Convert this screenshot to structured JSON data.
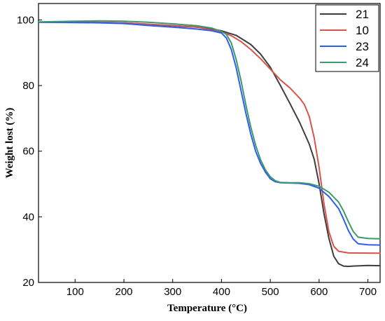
{
  "chart_data": {
    "type": "line",
    "xlabel": "Temperature (°C)",
    "ylabel": "Weight lost (%)",
    "xlim": [
      25,
      725
    ],
    "ylim": [
      20,
      105
    ],
    "xticks": [
      100,
      200,
      300,
      400,
      500,
      600,
      700
    ],
    "yticks": [
      20,
      40,
      60,
      80,
      100
    ],
    "grid": false,
    "legend_position": "top-right",
    "series": [
      {
        "name": "21",
        "color": "#3d3d3d",
        "points": [
          [
            25,
            99.3
          ],
          [
            100,
            99.4
          ],
          [
            200,
            99.1
          ],
          [
            300,
            98.2
          ],
          [
            350,
            97.8
          ],
          [
            400,
            96.7
          ],
          [
            430,
            95.3
          ],
          [
            460,
            92.5
          ],
          [
            480,
            89.6
          ],
          [
            500,
            85.6
          ],
          [
            520,
            80.2
          ],
          [
            540,
            74.6
          ],
          [
            560,
            68.8
          ],
          [
            580,
            62.1
          ],
          [
            590,
            57.5
          ],
          [
            600,
            50.0
          ],
          [
            610,
            41.0
          ],
          [
            620,
            33.5
          ],
          [
            630,
            28.0
          ],
          [
            640,
            25.7
          ],
          [
            650,
            25.0
          ],
          [
            660,
            24.9
          ],
          [
            670,
            25.0
          ],
          [
            700,
            25.2
          ],
          [
            725,
            25.1
          ]
        ]
      },
      {
        "name": "10",
        "color": "#d9534a",
        "points": [
          [
            25,
            99.3
          ],
          [
            100,
            99.4
          ],
          [
            200,
            99.1
          ],
          [
            300,
            98.3
          ],
          [
            350,
            97.8
          ],
          [
            400,
            96.4
          ],
          [
            420,
            95.2
          ],
          [
            440,
            93.4
          ],
          [
            460,
            91.0
          ],
          [
            480,
            88.2
          ],
          [
            500,
            85.0
          ],
          [
            520,
            81.8
          ],
          [
            540,
            79.3
          ],
          [
            560,
            76.2
          ],
          [
            570,
            74.2
          ],
          [
            580,
            70.5
          ],
          [
            590,
            64.0
          ],
          [
            600,
            55.0
          ],
          [
            610,
            44.0
          ],
          [
            620,
            35.5
          ],
          [
            630,
            31.0
          ],
          [
            640,
            29.5
          ],
          [
            660,
            29.0
          ],
          [
            725,
            28.9
          ]
        ]
      },
      {
        "name": "23",
        "color": "#2c5ff0",
        "points": [
          [
            25,
            99.3
          ],
          [
            100,
            99.2
          ],
          [
            150,
            99.1
          ],
          [
            200,
            98.9
          ],
          [
            250,
            98.3
          ],
          [
            300,
            97.8
          ],
          [
            350,
            97.2
          ],
          [
            380,
            96.7
          ],
          [
            400,
            96.0
          ],
          [
            410,
            94.5
          ],
          [
            420,
            91.0
          ],
          [
            430,
            85.5
          ],
          [
            440,
            78.5
          ],
          [
            450,
            71.5
          ],
          [
            460,
            65.2
          ],
          [
            470,
            60.0
          ],
          [
            480,
            56.3
          ],
          [
            490,
            53.6
          ],
          [
            500,
            51.6
          ],
          [
            510,
            50.7
          ],
          [
            520,
            50.4
          ],
          [
            540,
            50.3
          ],
          [
            560,
            50.2
          ],
          [
            580,
            49.8
          ],
          [
            600,
            48.7
          ],
          [
            620,
            46.2
          ],
          [
            640,
            42.5
          ],
          [
            650,
            39.3
          ],
          [
            660,
            35.8
          ],
          [
            670,
            33.2
          ],
          [
            680,
            31.8
          ],
          [
            700,
            31.5
          ],
          [
            725,
            31.4
          ]
        ]
      },
      {
        "name": "24",
        "color": "#3b9a6b",
        "points": [
          [
            25,
            99.4
          ],
          [
            100,
            99.6
          ],
          [
            150,
            99.7
          ],
          [
            200,
            99.6
          ],
          [
            250,
            99.3
          ],
          [
            300,
            98.8
          ],
          [
            350,
            98.2
          ],
          [
            380,
            97.5
          ],
          [
            400,
            96.5
          ],
          [
            410,
            95.6
          ],
          [
            420,
            93.0
          ],
          [
            430,
            88.0
          ],
          [
            440,
            81.5
          ],
          [
            450,
            74.0
          ],
          [
            460,
            67.3
          ],
          [
            470,
            61.8
          ],
          [
            480,
            57.4
          ],
          [
            490,
            54.3
          ],
          [
            500,
            52.2
          ],
          [
            510,
            51.0
          ],
          [
            520,
            50.5
          ],
          [
            540,
            50.4
          ],
          [
            560,
            50.4
          ],
          [
            580,
            50.1
          ],
          [
            600,
            49.3
          ],
          [
            620,
            47.5
          ],
          [
            640,
            44.5
          ],
          [
            650,
            41.8
          ],
          [
            660,
            38.5
          ],
          [
            670,
            35.5
          ],
          [
            680,
            33.8
          ],
          [
            700,
            33.4
          ],
          [
            725,
            33.3
          ]
        ]
      }
    ]
  }
}
